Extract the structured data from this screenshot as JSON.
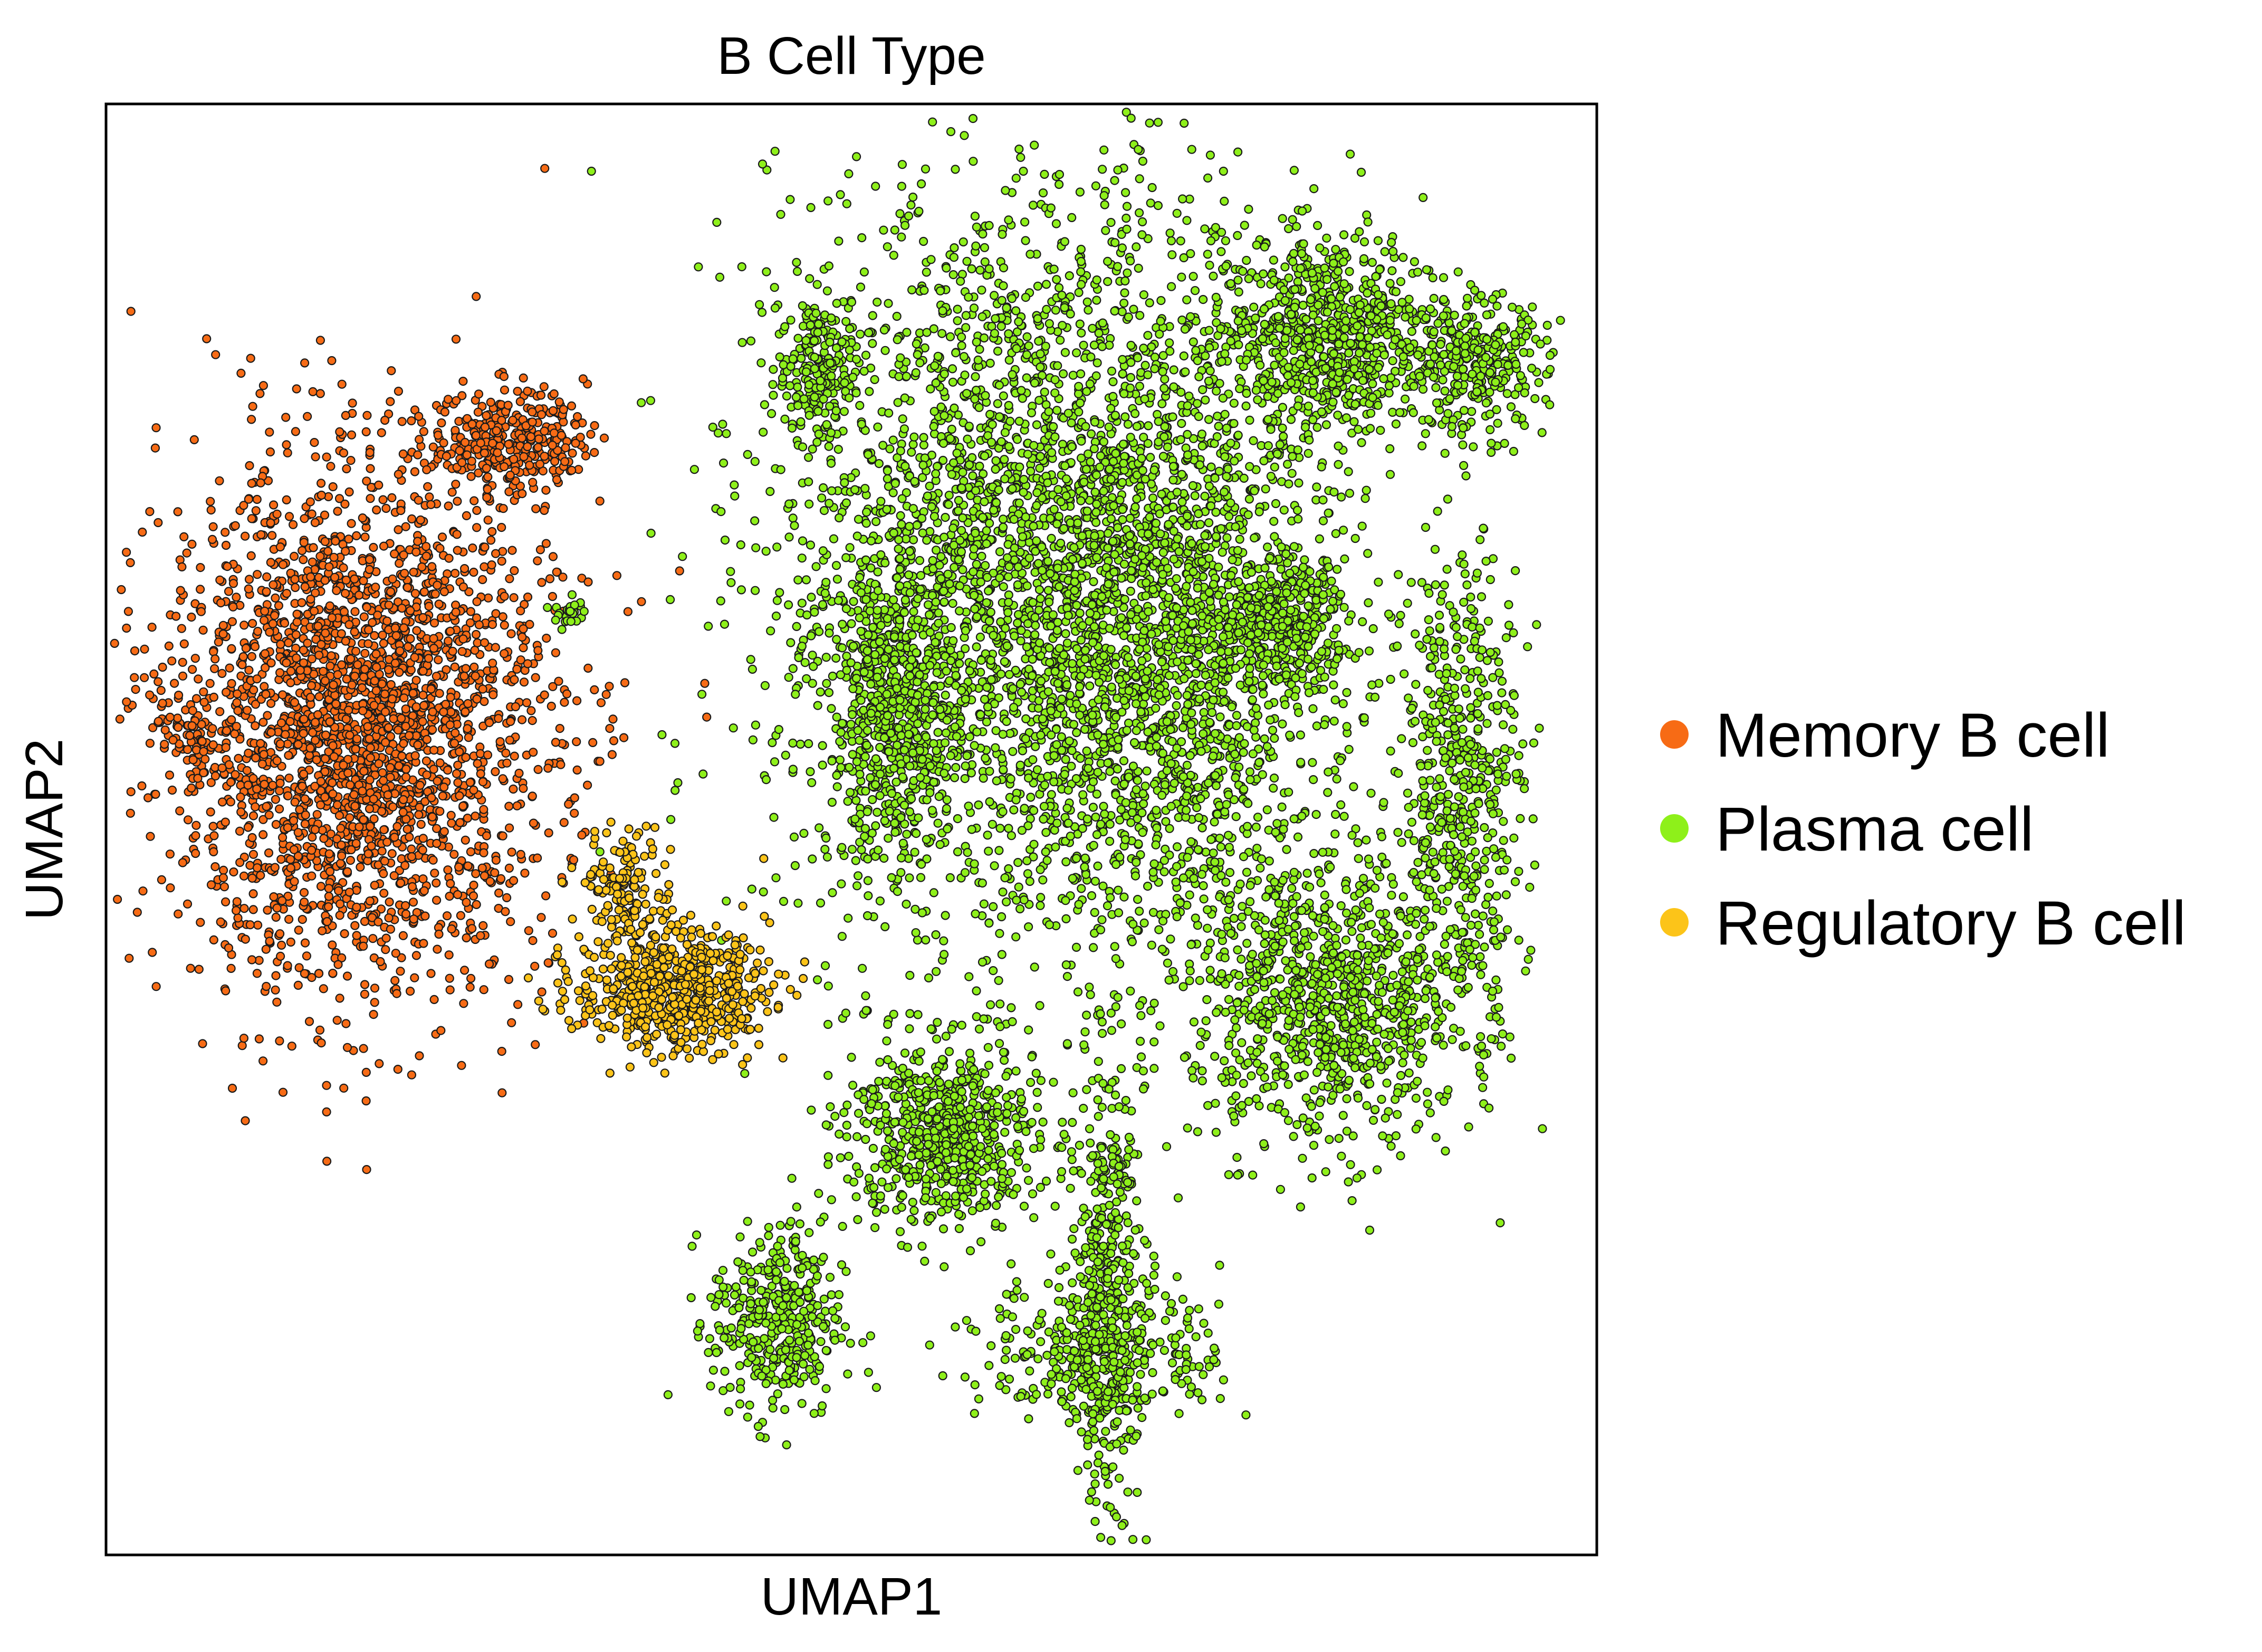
{
  "chart_data": {
    "type": "scatter",
    "title": "B Cell Type",
    "xlabel": "UMAP1",
    "ylabel": "UMAP2",
    "xticks": [],
    "yticks": [],
    "grid": false,
    "legend_position": "right",
    "xlim": [
      0,
      100
    ],
    "ylim": [
      0,
      100
    ],
    "series": [
      {
        "name": "Memory B cell",
        "color": "#f76b15",
        "clusters": [
          {
            "x": 17,
            "y": 57,
            "sx": 6.5,
            "sy": 9.0,
            "n": 2600
          },
          {
            "x": 27,
            "y": 77,
            "sx": 2.6,
            "sy": 1.7,
            "n": 320
          },
          {
            "x": 6,
            "y": 57,
            "sx": 1.5,
            "sy": 1.0,
            "n": 60
          }
        ]
      },
      {
        "name": "Plasma cell",
        "color": "#8ef01a",
        "clusters": [
          {
            "x": 63,
            "y": 68,
            "sx": 9.0,
            "sy": 13.0,
            "n": 3400
          },
          {
            "x": 53,
            "y": 58,
            "sx": 2.2,
            "sy": 5.0,
            "n": 550
          },
          {
            "x": 56,
            "y": 29,
            "sx": 3.2,
            "sy": 3.2,
            "n": 650
          },
          {
            "x": 67,
            "y": 18,
            "sx": 1.2,
            "sy": 7.5,
            "n": 450
          },
          {
            "x": 67,
            "y": 14,
            "sx": 4.0,
            "sy": 2.5,
            "n": 320
          },
          {
            "x": 45,
            "y": 16,
            "sx": 2.2,
            "sy": 3.3,
            "n": 380
          },
          {
            "x": 82,
            "y": 84,
            "sx": 4.0,
            "sy": 3.5,
            "n": 800
          },
          {
            "x": 82,
            "y": 38,
            "sx": 4.5,
            "sy": 5.0,
            "n": 950
          },
          {
            "x": 91,
            "y": 53,
            "sx": 2.0,
            "sy": 8.0,
            "n": 520
          },
          {
            "x": 92,
            "y": 82,
            "sx": 2.3,
            "sy": 2.3,
            "n": 280
          },
          {
            "x": 48,
            "y": 82,
            "sx": 1.5,
            "sy": 2.5,
            "n": 200
          },
          {
            "x": 79,
            "y": 64,
            "sx": 2.2,
            "sy": 2.2,
            "n": 320
          },
          {
            "x": 72,
            "y": 60,
            "sx": 5.0,
            "sy": 9.0,
            "n": 900
          },
          {
            "x": 31,
            "y": 65,
            "sx": 0.6,
            "sy": 0.5,
            "n": 25
          }
        ]
      },
      {
        "name": "Regulatory B cell",
        "color": "#fcc419",
        "clusters": [
          {
            "x": 38,
            "y": 39,
            "sx": 3.2,
            "sy": 2.1,
            "n": 650
          },
          {
            "x": 35,
            "y": 46,
            "sx": 1.5,
            "sy": 2.0,
            "n": 150
          }
        ]
      }
    ]
  }
}
